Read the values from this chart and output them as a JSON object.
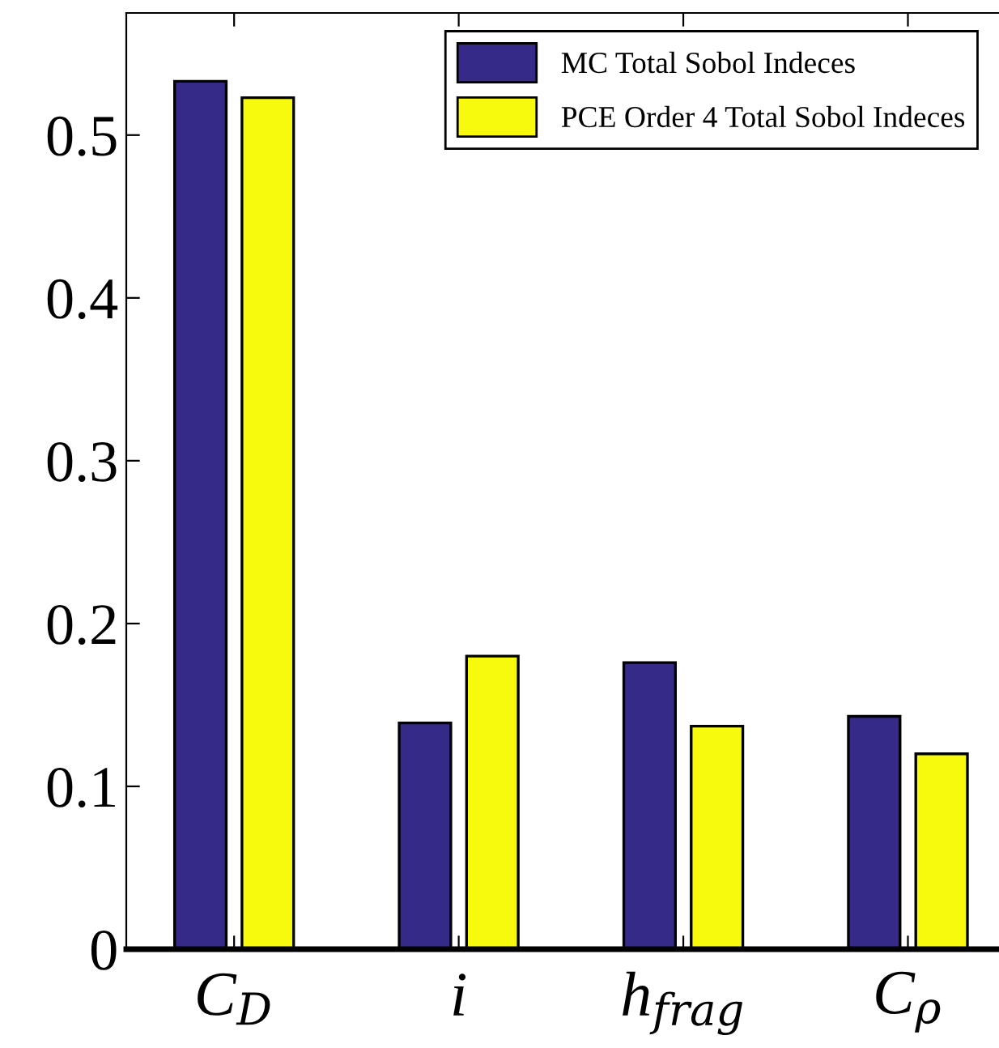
{
  "chart_data": {
    "type": "bar",
    "categories": [
      "C$_{D}$",
      "i",
      "h$_{frag}$",
      "C$_{ρ}$"
    ],
    "series": [
      {
        "name": "MC Total Sobol Indeces",
        "color": "#352a87",
        "values": [
          0.533,
          0.139,
          0.176,
          0.143
        ]
      },
      {
        "name": "PCE Order 4 Total Sobol Indeces",
        "color": "#f8fa0d",
        "values": [
          0.523,
          0.18,
          0.137,
          0.12
        ]
      }
    ],
    "ylim": [
      0,
      0.575
    ],
    "yticks": [
      0,
      0.1,
      0.2,
      0.3,
      0.4,
      0.5
    ],
    "grid": false,
    "legend": "top right"
  }
}
